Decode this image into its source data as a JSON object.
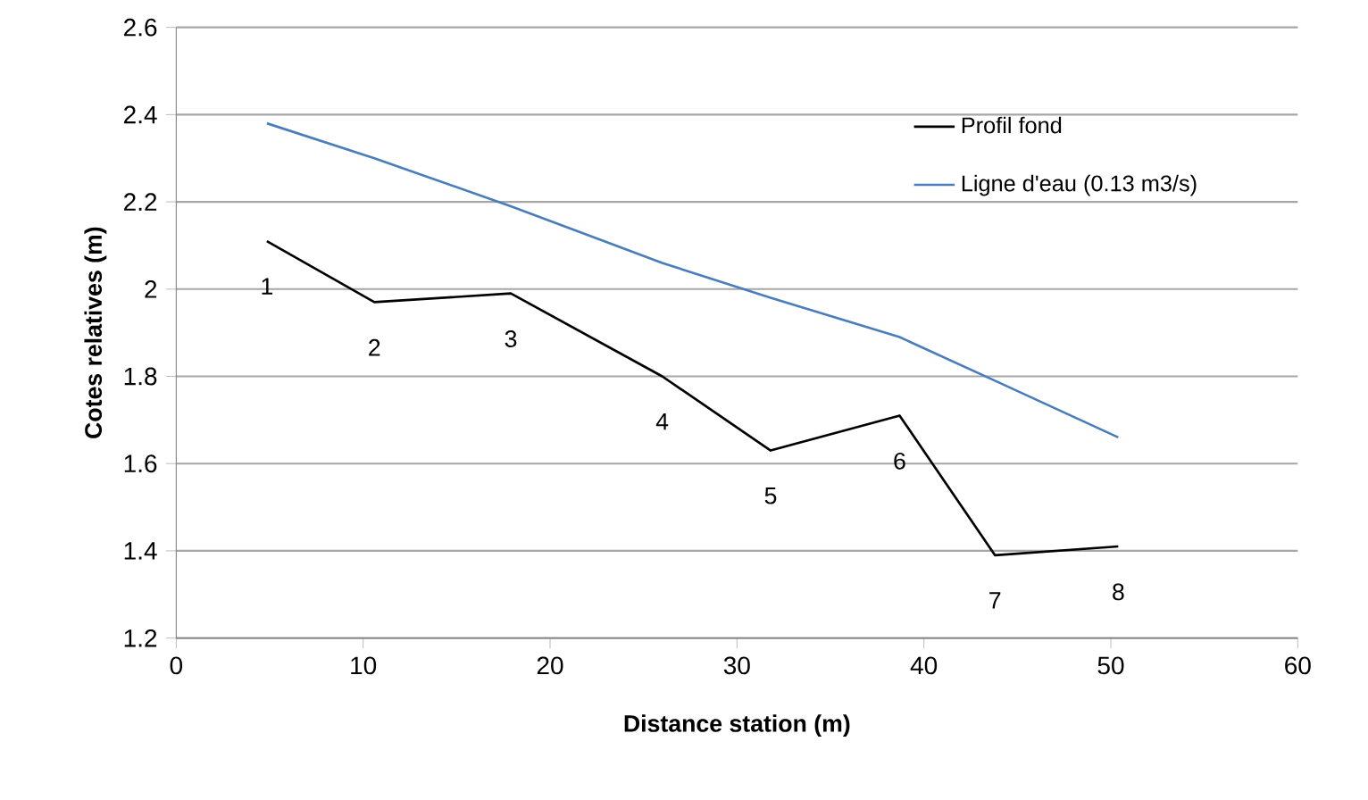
{
  "chart_data": {
    "type": "line",
    "xlabel": "Distance station (m)",
    "ylabel": "Cotes relatives (m)",
    "x": [
      4.85,
      10.6,
      17.9,
      26.0,
      31.8,
      38.7,
      43.8,
      50.4
    ],
    "series": [
      {
        "name": "Profil fond",
        "color": "#000000",
        "values": [
          2.11,
          1.97,
          1.99,
          1.8,
          1.63,
          1.71,
          1.39,
          1.41
        ]
      },
      {
        "name": "Ligne d'eau (0.13 m3/s)",
        "color": "#4a7ebb",
        "values": [
          2.38,
          2.3,
          2.19,
          2.06,
          1.98,
          1.89,
          1.79,
          1.66
        ]
      }
    ],
    "annotations": [
      {
        "text": "1",
        "x": 4.85,
        "y": 2.11
      },
      {
        "text": "2",
        "x": 10.6,
        "y": 1.97
      },
      {
        "text": "3",
        "x": 17.9,
        "y": 1.99
      },
      {
        "text": "4",
        "x": 26.0,
        "y": 1.8
      },
      {
        "text": "5",
        "x": 31.8,
        "y": 1.63
      },
      {
        "text": "6",
        "x": 38.7,
        "y": 1.71
      },
      {
        "text": "7",
        "x": 43.8,
        "y": 1.39
      },
      {
        "text": "8",
        "x": 50.4,
        "y": 1.41
      }
    ],
    "xlim": [
      0,
      60
    ],
    "xticks": [
      0,
      10,
      20,
      30,
      40,
      50,
      60
    ],
    "ylim": [
      1.2,
      2.6
    ],
    "yticks": [
      {
        "value": 1.2,
        "label": "1.2"
      },
      {
        "value": 1.4,
        "label": "1.4"
      },
      {
        "value": 1.6,
        "label": "1.6"
      },
      {
        "value": 1.8,
        "label": "1.8"
      },
      2,
      {
        "value": 2.2,
        "label": "2.2"
      },
      {
        "value": 2.4,
        "label": "2.4"
      },
      {
        "value": 2.6,
        "label": "2.6"
      }
    ],
    "grid": "y",
    "legend": "top right",
    "marker": "none",
    "line_style": "solid"
  }
}
